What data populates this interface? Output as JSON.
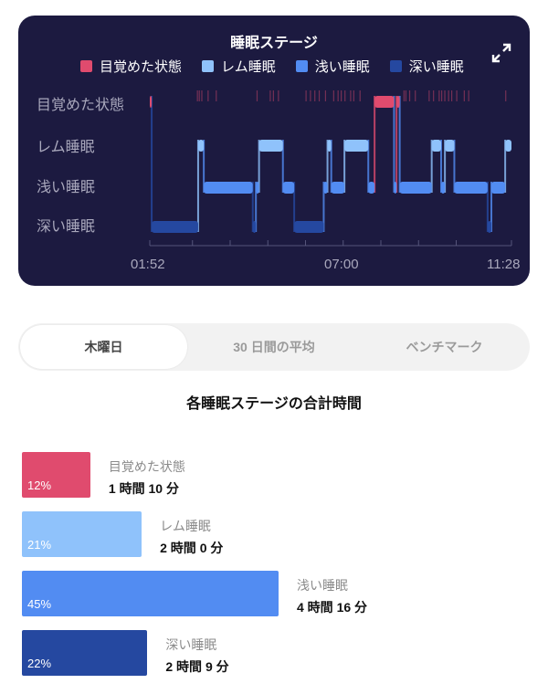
{
  "card": {
    "title": "睡眠ステージ",
    "expand_icon": "expand-icon"
  },
  "legend": [
    {
      "label": "目覚めた状態",
      "color": "#e04b6e"
    },
    {
      "label": "レム睡眠",
      "color": "#8fc2fb"
    },
    {
      "label": "浅い睡眠",
      "color": "#528cf2"
    },
    {
      "label": "深い睡眠",
      "color": "#2548a0"
    }
  ],
  "chart_data": {
    "type": "line",
    "title": "睡眠ステージ",
    "y_categories": [
      "目覚めた状態",
      "レム睡眠",
      "浅い睡眠",
      "深い睡眠"
    ],
    "x_tick_labels": [
      "01:52",
      "07:00",
      "11:28"
    ],
    "xlim": [
      "01:52",
      "11:28"
    ],
    "segments": [
      {
        "start": "01:52",
        "end": "01:55",
        "stage": "目覚めた状態"
      },
      {
        "start": "01:55",
        "end": "03:09",
        "stage": "深い睡眠"
      },
      {
        "start": "03:09",
        "end": "03:18",
        "stage": "レム睡眠"
      },
      {
        "start": "03:18",
        "end": "04:36",
        "stage": "浅い睡眠"
      },
      {
        "start": "04:36",
        "end": "04:41",
        "stage": "深い睡眠"
      },
      {
        "start": "04:41",
        "end": "04:46",
        "stage": "浅い睡眠"
      },
      {
        "start": "04:46",
        "end": "05:24",
        "stage": "レム睡眠"
      },
      {
        "start": "05:24",
        "end": "05:42",
        "stage": "浅い睡眠"
      },
      {
        "start": "05:42",
        "end": "06:29",
        "stage": "深い睡眠"
      },
      {
        "start": "06:29",
        "end": "06:35",
        "stage": "浅い睡眠"
      },
      {
        "start": "06:35",
        "end": "06:41",
        "stage": "レム睡眠"
      },
      {
        "start": "06:41",
        "end": "07:02",
        "stage": "浅い睡眠"
      },
      {
        "start": "07:02",
        "end": "07:40",
        "stage": "レム睡眠"
      },
      {
        "start": "07:40",
        "end": "07:50",
        "stage": "浅い睡眠"
      },
      {
        "start": "07:50",
        "end": "08:21",
        "stage": "目覚めた状態"
      },
      {
        "start": "08:21",
        "end": "08:25",
        "stage": "浅い睡眠"
      },
      {
        "start": "08:25",
        "end": "08:30",
        "stage": "目覚めた状態"
      },
      {
        "start": "08:30",
        "end": "09:21",
        "stage": "浅い睡眠"
      },
      {
        "start": "09:21",
        "end": "09:36",
        "stage": "レム睡眠"
      },
      {
        "start": "09:36",
        "end": "09:42",
        "stage": "浅い睡眠"
      },
      {
        "start": "09:42",
        "end": "09:57",
        "stage": "レム睡眠"
      },
      {
        "start": "09:57",
        "end": "10:50",
        "stage": "浅い睡眠"
      },
      {
        "start": "10:50",
        "end": "10:56",
        "stage": "深い睡眠"
      },
      {
        "start": "10:56",
        "end": "11:18",
        "stage": "浅い睡眠"
      },
      {
        "start": "11:18",
        "end": "11:28",
        "stage": "レム睡眠"
      }
    ],
    "brief_awakenings": [
      "03:07",
      "03:10",
      "03:14",
      "03:24",
      "03:37",
      "04:42",
      "05:03",
      "05:08",
      "05:16",
      "06:00",
      "06:07",
      "06:14",
      "06:21",
      "06:31",
      "06:44",
      "06:51",
      "06:56",
      "07:02",
      "07:11",
      "07:16",
      "07:26",
      "08:36",
      "08:39",
      "08:45",
      "08:54",
      "09:16",
      "09:23",
      "09:32",
      "09:36",
      "09:41",
      "09:47",
      "09:52",
      "10:00",
      "10:12",
      "10:19",
      "11:18"
    ]
  },
  "tabs": [
    {
      "label": "木曜日",
      "active": true
    },
    {
      "label": "30 日間の平均",
      "active": false
    },
    {
      "label": "ベンチマーク",
      "active": false
    }
  ],
  "summary": {
    "title": "各睡眠ステージの合計時間",
    "items": [
      {
        "label": "目覚めた状態",
        "percent": 12,
        "percent_label": "12%",
        "duration": "1 時間 10 分",
        "color": "#e04b6e"
      },
      {
        "label": "レム睡眠",
        "percent": 21,
        "percent_label": "21%",
        "duration": "2 時間 0 分",
        "color": "#8fc2fb"
      },
      {
        "label": "浅い睡眠",
        "percent": 45,
        "percent_label": "45%",
        "duration": "4 時間 16 分",
        "color": "#528cf2"
      },
      {
        "label": "深い睡眠",
        "percent": 22,
        "percent_label": "22%",
        "duration": "2 時間 9 分",
        "color": "#2548a0"
      }
    ]
  }
}
